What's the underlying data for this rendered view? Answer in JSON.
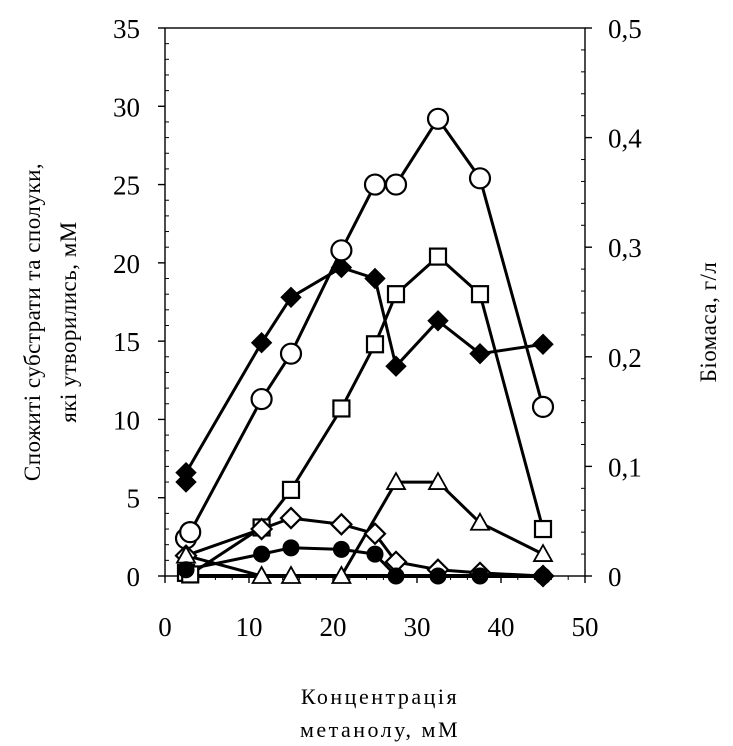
{
  "chart_data": {
    "type": "line",
    "xlabel_lines": [
      "Концентрація",
      "метанолу, мМ"
    ],
    "ylabel_left_lines": [
      "Спожиті субстрати та сполуки,",
      "які утворились, мМ"
    ],
    "ylabel_right": "Біомаса, г/л",
    "xlim": [
      0,
      50
    ],
    "ylim_left": [
      0,
      35
    ],
    "ylim_right": [
      0,
      0.5
    ],
    "x_ticks": [
      "0",
      "10",
      "20",
      "30",
      "40",
      "50"
    ],
    "y_left_ticks": [
      "0",
      "5",
      "10",
      "15",
      "20",
      "25",
      "30",
      "35"
    ],
    "y_right_ticks": [
      "0",
      "0,1",
      "0,2",
      "0,3",
      "0,4",
      "0,5"
    ],
    "grid": false,
    "legend": "none",
    "series": [
      {
        "marker": "filled-diamond",
        "axis": "left",
        "x": [
          2.5,
          2.5,
          11.5,
          15,
          21,
          25,
          27.5,
          32.5,
          37.5,
          45
        ],
        "y": [
          6.0,
          6.6,
          14.9,
          17.8,
          19.7,
          19.0,
          13.4,
          16.3,
          14.2,
          14.8
        ]
      },
      {
        "marker": "open-circle",
        "axis": "left",
        "x": [
          2.5,
          3,
          11.5,
          15,
          21,
          25,
          27.5,
          32.5,
          37.5,
          45
        ],
        "y": [
          2.4,
          2.8,
          11.3,
          14.2,
          20.8,
          25.0,
          25.0,
          29.2,
          25.4,
          10.8
        ]
      },
      {
        "marker": "open-square",
        "axis": "left",
        "x": [
          2.5,
          3,
          11.5,
          15,
          21,
          25,
          27.5,
          32.5,
          37.5,
          45
        ],
        "y": [
          0.2,
          0.1,
          3.1,
          5.5,
          10.7,
          14.8,
          18.0,
          20.4,
          18.0,
          3.0
        ]
      },
      {
        "marker": "open-diamond",
        "axis": "left",
        "x": [
          2.5,
          11.5,
          15,
          21,
          25,
          27.5,
          32.5,
          37.5,
          45
        ],
        "y": [
          1.3,
          3.0,
          3.7,
          3.3,
          2.7,
          0.9,
          0.4,
          0.2,
          0.0
        ]
      },
      {
        "marker": "open-triangle",
        "axis": "left",
        "x": [
          2.5,
          11.5,
          15,
          21,
          27.5,
          32.5,
          37.5,
          45
        ],
        "y": [
          1.3,
          0.0,
          0.0,
          0.0,
          6.0,
          6.0,
          3.4,
          1.4
        ]
      },
      {
        "marker": "filled-circle",
        "axis": "left",
        "x": [
          2.5,
          11.5,
          15,
          21,
          25,
          27.5,
          32.5,
          37.5,
          45
        ],
        "y": [
          0.4,
          1.4,
          1.8,
          1.7,
          1.4,
          0.0,
          0.0,
          0.0,
          0.0
        ]
      },
      {
        "marker": "filled-square-line",
        "axis": "left",
        "x": [
          2.5,
          11.5,
          15,
          21,
          27.5,
          32.5,
          37.5,
          45
        ],
        "y": [
          0.0,
          0.0,
          0.0,
          0.0,
          0.0,
          0.0,
          0.0,
          0.0
        ]
      }
    ]
  }
}
